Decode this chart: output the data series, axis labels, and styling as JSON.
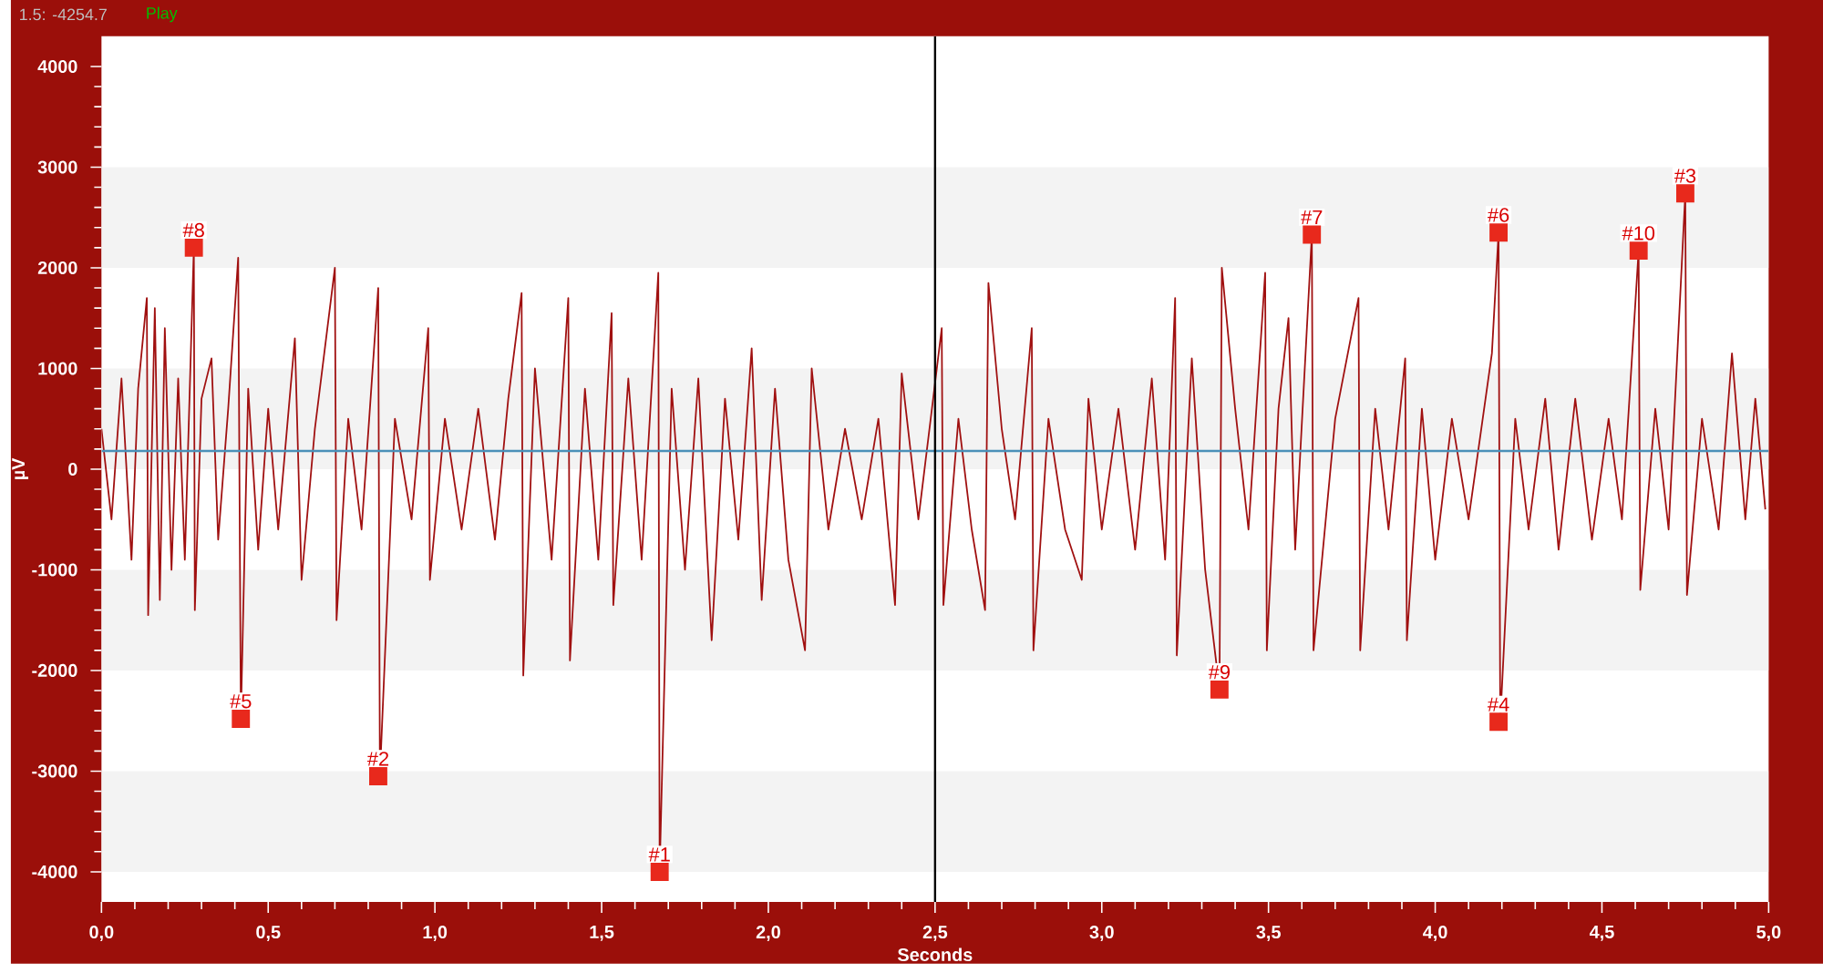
{
  "chart_data": {
    "type": "line",
    "xlabel": "Seconds",
    "ylabel": "µV",
    "xlim": [
      0,
      5
    ],
    "ylim": [
      -4300,
      4300
    ],
    "xticks": [
      {
        "value": 0,
        "label": "0,0"
      },
      {
        "value": 0.5,
        "label": "0,5"
      },
      {
        "value": 1,
        "label": "1,0"
      },
      {
        "value": 1.5,
        "label": "1,5"
      },
      {
        "value": 2,
        "label": "2,0"
      },
      {
        "value": 2.5,
        "label": "2,5"
      },
      {
        "value": 3,
        "label": "3,0"
      },
      {
        "value": 3.5,
        "label": "3,5"
      },
      {
        "value": 4,
        "label": "4,0"
      },
      {
        "value": 4.5,
        "label": "4,5"
      },
      {
        "value": 5,
        "label": "5,0"
      }
    ],
    "yticks": [
      -4000,
      -3000,
      -2000,
      -1000,
      0,
      1000,
      2000,
      3000,
      4000
    ],
    "bands": [
      {
        "axis": "y",
        "from": 2000,
        "to": 3000,
        "color": "#f3f3f3"
      },
      {
        "axis": "y",
        "from": 0,
        "to": 1000,
        "color": "#f3f3f3"
      },
      {
        "axis": "y",
        "from": -2000,
        "to": -1000,
        "color": "#f3f3f3"
      },
      {
        "axis": "y",
        "from": -4000,
        "to": -3000,
        "color": "#f3f3f3"
      }
    ],
    "ref_lines": [
      {
        "axis": "y",
        "value": 180,
        "color": "#4a90b8"
      },
      {
        "axis": "x",
        "value": 2.5,
        "color": "#000000"
      }
    ],
    "series": [
      {
        "color": "#a01010",
        "x": [
          0.0,
          0.03,
          0.06,
          0.09,
          0.11,
          0.136,
          0.14,
          0.16,
          0.175,
          0.19,
          0.21,
          0.23,
          0.25,
          0.277,
          0.28,
          0.3,
          0.33,
          0.35,
          0.38,
          0.41,
          0.418,
          0.44,
          0.47,
          0.5,
          0.53,
          0.58,
          0.6,
          0.64,
          0.7,
          0.705,
          0.74,
          0.78,
          0.83,
          0.835,
          0.88,
          0.93,
          0.98,
          0.985,
          1.03,
          1.08,
          1.13,
          1.18,
          1.22,
          1.26,
          1.265,
          1.3,
          1.35,
          1.4,
          1.405,
          1.45,
          1.49,
          1.53,
          1.535,
          1.58,
          1.62,
          1.67,
          1.674,
          1.71,
          1.75,
          1.79,
          1.83,
          1.87,
          1.91,
          1.95,
          1.98,
          2.02,
          2.06,
          2.11,
          2.13,
          2.18,
          2.23,
          2.28,
          2.33,
          2.38,
          2.4,
          2.45,
          2.52,
          2.525,
          2.57,
          2.61,
          2.65,
          2.66,
          2.7,
          2.74,
          2.79,
          2.795,
          2.84,
          2.89,
          2.94,
          2.96,
          3.0,
          3.05,
          3.1,
          3.15,
          3.19,
          3.22,
          3.225,
          3.27,
          3.31,
          3.353,
          3.36,
          3.4,
          3.44,
          3.49,
          3.495,
          3.53,
          3.56,
          3.58,
          3.63,
          3.635,
          3.7,
          3.77,
          3.775,
          3.82,
          3.86,
          3.91,
          3.915,
          3.96,
          4.0,
          4.05,
          4.1,
          4.17,
          4.19,
          4.195,
          4.24,
          4.28,
          4.33,
          4.37,
          4.42,
          4.47,
          4.52,
          4.56,
          4.61,
          4.615,
          4.66,
          4.7,
          4.75,
          4.755,
          4.8,
          4.85,
          4.89,
          4.93,
          4.96,
          4.99
        ],
        "values": [
          400,
          -500,
          900,
          -900,
          800,
          1700,
          -1450,
          1600,
          -1300,
          1400,
          -1000,
          900,
          -900,
          2200,
          -1400,
          700,
          1100,
          -700,
          600,
          2100,
          -2480,
          800,
          -800,
          600,
          -600,
          1300,
          -1100,
          400,
          2000,
          -1500,
          500,
          -600,
          1800,
          -3050,
          500,
          -500,
          1400,
          -1100,
          500,
          -600,
          600,
          -700,
          700,
          1750,
          -2050,
          1000,
          -900,
          1700,
          -1900,
          800,
          -900,
          1550,
          -1350,
          900,
          -900,
          1950,
          -4000,
          800,
          -1000,
          900,
          -1700,
          700,
          -700,
          1200,
          -1300,
          800,
          -900,
          -1800,
          1000,
          -600,
          400,
          -500,
          500,
          -1350,
          950,
          -500,
          1400,
          -1350,
          500,
          -600,
          -1400,
          1850,
          400,
          -500,
          1400,
          -1800,
          500,
          -600,
          -1100,
          700,
          -600,
          600,
          -800,
          900,
          -900,
          1700,
          -1850,
          1100,
          -1000,
          -2190,
          2000,
          600,
          -600,
          1950,
          -1800,
          600,
          1500,
          -800,
          2330,
          -1800,
          500,
          1700,
          -1800,
          600,
          -600,
          1100,
          -1700,
          600,
          -900,
          500,
          -500,
          1150,
          2350,
          -2510,
          500,
          -600,
          700,
          -800,
          700,
          -700,
          500,
          -500,
          2170,
          -1200,
          600,
          -600,
          2740,
          -1250,
          500,
          -600,
          1150,
          -500,
          700,
          -400
        ]
      },
      {
        "type": "scatter",
        "color": "#e8291c",
        "marker": "square",
        "x": [
          1.674,
          0.83,
          4.75,
          4.19,
          0.418,
          4.19,
          3.63,
          0.277,
          3.353,
          4.61
        ],
        "values": [
          -4000,
          -3050,
          2740,
          -2510,
          -2480,
          2350,
          2330,
          2200,
          -2190,
          2170
        ]
      }
    ],
    "annotations": [
      "1.5: -4254.7",
      "Play",
      {
        "text": "#1",
        "x": 1.674,
        "y": -4000
      },
      {
        "text": "#2",
        "x": 0.83,
        "y": -3050
      },
      {
        "text": "#3",
        "x": 4.75,
        "y": 2740
      },
      {
        "text": "#4",
        "x": 4.19,
        "y": -2510
      },
      {
        "text": "#5",
        "x": 0.418,
        "y": -2480
      },
      {
        "text": "#6",
        "x": 4.19,
        "y": 2350
      },
      {
        "text": "#7",
        "x": 3.63,
        "y": 2330
      },
      {
        "text": "#8",
        "x": 0.277,
        "y": 2200
      },
      {
        "text": "#9",
        "x": 3.353,
        "y": -2190
      },
      {
        "text": "#10",
        "x": 4.61,
        "y": 2170
      }
    ]
  }
}
